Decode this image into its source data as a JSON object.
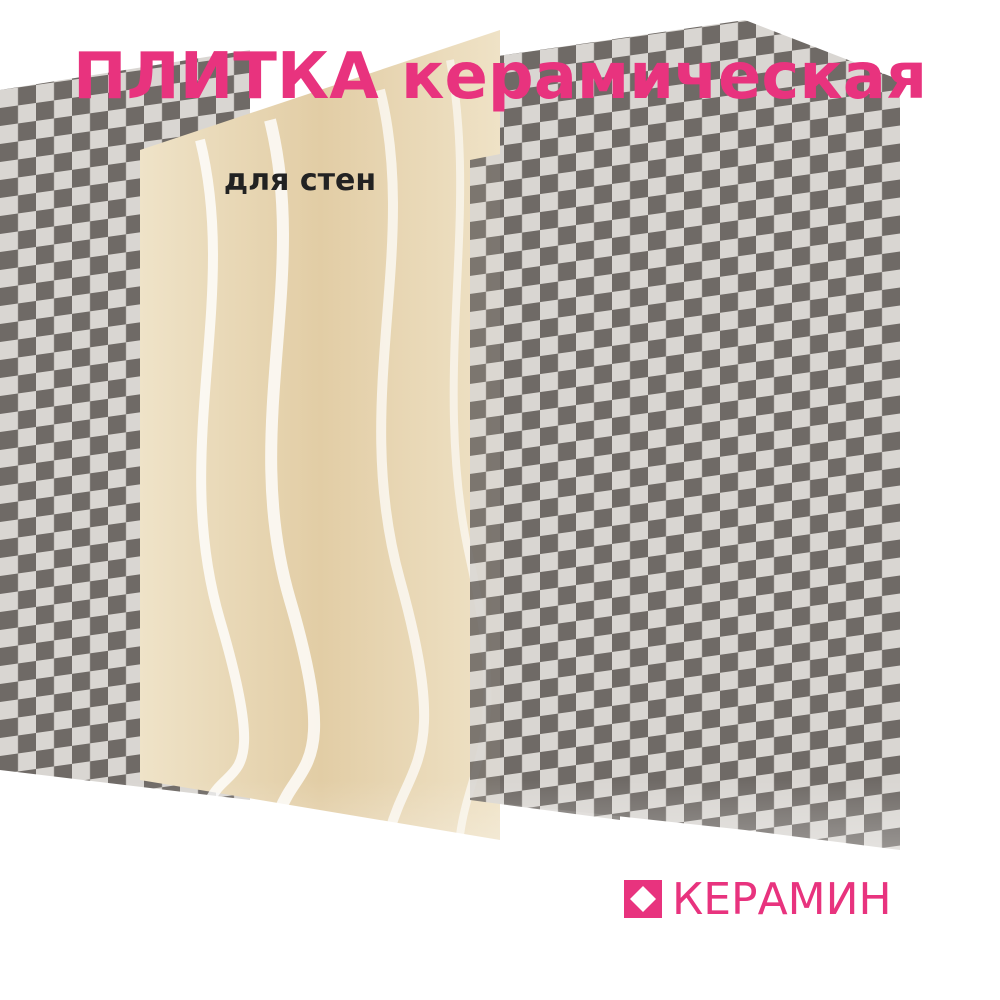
{
  "title": "ПЛИТКА керамическая",
  "subtitle": "для стен",
  "brand": "КЕРАМИН"
}
